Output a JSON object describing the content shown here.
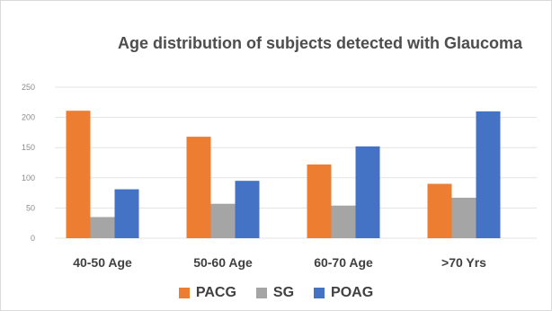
{
  "chart_data": {
    "type": "bar",
    "title": "Age distribution of subjects detected with Glaucoma",
    "categories": [
      "40-50 Age",
      "50-60 Age",
      "60-70 Age",
      ">70 Yrs"
    ],
    "series": [
      {
        "name": "PACG",
        "color": "#ed7d31",
        "values": [
          211,
          168,
          122,
          90
        ]
      },
      {
        "name": "SG",
        "color": "#a5a5a5",
        "values": [
          35,
          57,
          54,
          67
        ]
      },
      {
        "name": "POAG",
        "color": "#4472c4",
        "values": [
          81,
          95,
          152,
          210
        ]
      }
    ],
    "ylim": [
      0,
      250
    ],
    "yticks": [
      "0",
      "50",
      "100",
      "150",
      "200",
      "250"
    ],
    "grid": true,
    "legend_position": "bottom"
  }
}
